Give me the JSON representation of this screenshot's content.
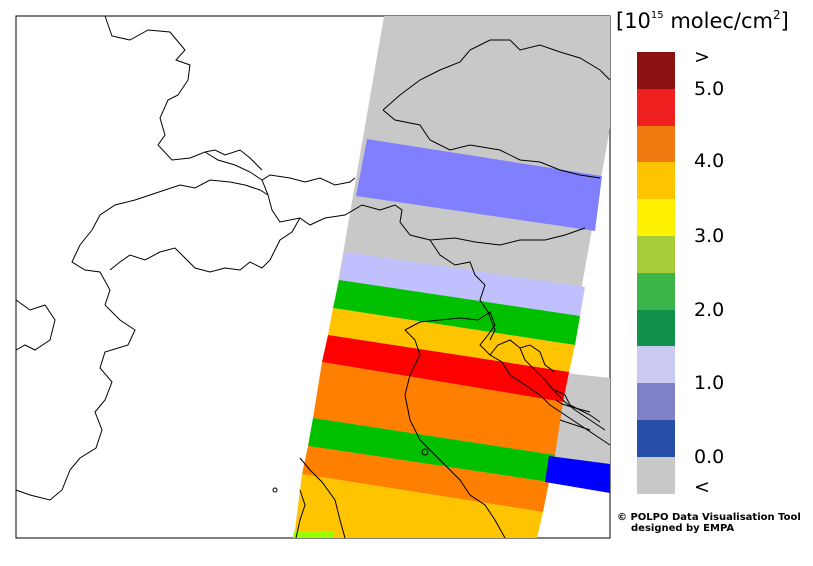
{
  "legend": {
    "unit_prefix": "[10",
    "unit_exp": "15",
    "unit_mid": " molec/cm",
    "unit_sq": "2",
    "unit_suffix": "]",
    "colors": [
      "#8b1010",
      "#ee2020",
      "#f07a10",
      "#ffc400",
      "#fff200",
      "#a6cc38",
      "#3cb44a",
      "#10914a",
      "#c9c9f2",
      "#8080c8",
      "#2850a8",
      "#c8c8c8"
    ],
    "labels": {
      "above": ">",
      "v5": "5.0",
      "v4": "4.0",
      "v3": "3.0",
      "v2": "2.0",
      "v1": "1.0",
      "v0": "0.0",
      "below": "<"
    }
  },
  "credit": {
    "line1": "© POLPO Data Visualisation Tool",
    "line2": "designed by EMPA"
  },
  "swath": {
    "no_data_color": "#c8c8c8",
    "bands": [
      {
        "color": "#8080ff"
      },
      {
        "color": "#c0c0ff"
      },
      {
        "color": "#00c000"
      },
      {
        "color": "#ffc400"
      },
      {
        "color": "#ff0000"
      },
      {
        "color": "#ff8000"
      },
      {
        "color": "#00c000"
      },
      {
        "color": "#ff8000"
      },
      {
        "color": "#ffc400"
      },
      {
        "color": "#0000ff"
      },
      {
        "color": "#99ff00"
      }
    ]
  }
}
